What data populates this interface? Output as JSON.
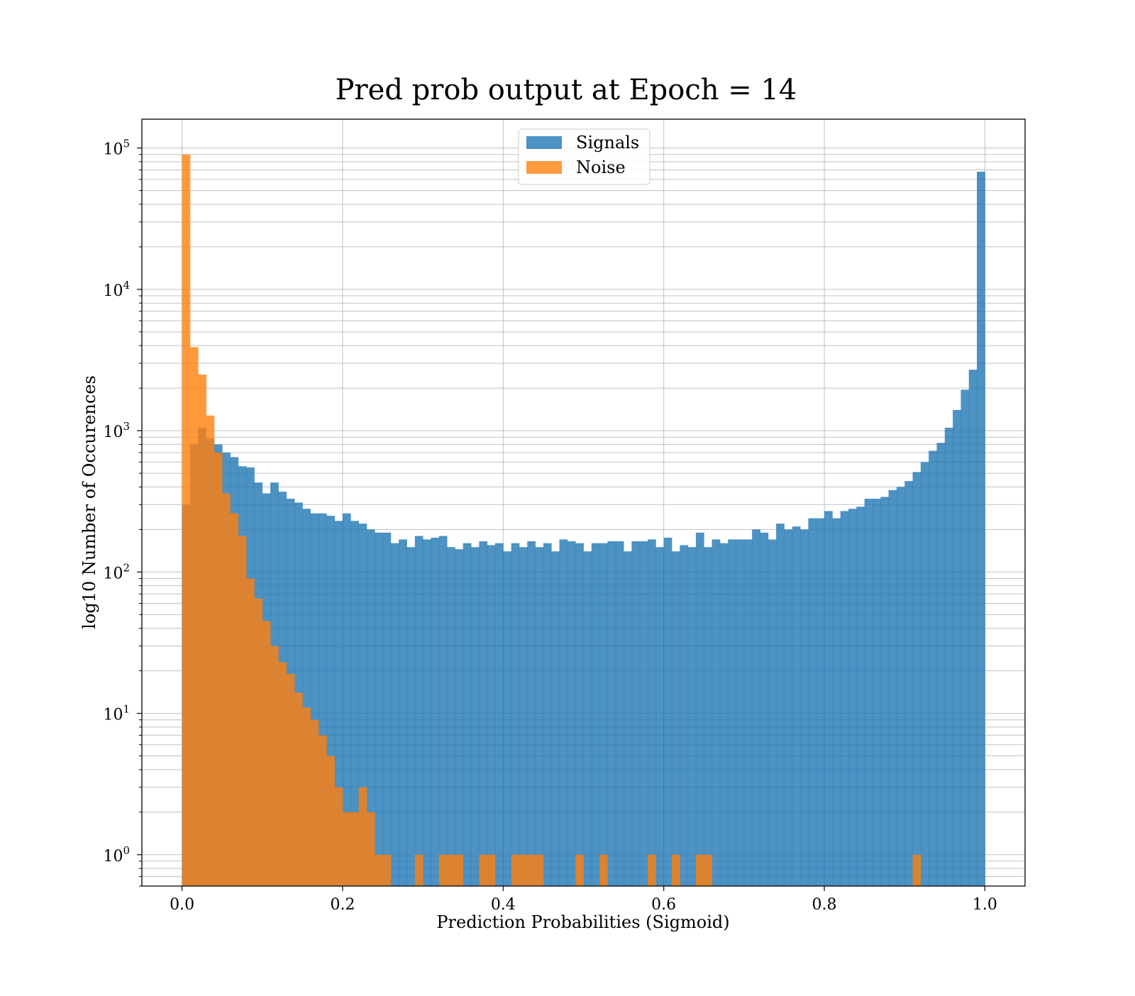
{
  "chart_data": {
    "type": "histogram",
    "title": "Pred prob output at Epoch = 14",
    "xlabel": "Prediction Probabilities (Sigmoid)",
    "ylabel": "log10 Number of Occurences",
    "x_range": [
      -0.05,
      1.05
    ],
    "y_scale": "log",
    "y_range": [
      0.6,
      160000
    ],
    "x_ticks": [
      0.0,
      0.2,
      0.4,
      0.6,
      0.8,
      1.0
    ],
    "x_tick_labels": [
      "0.0",
      "0.2",
      "0.4",
      "0.6",
      "0.8",
      "1.0"
    ],
    "y_ticks": [
      {
        "base": "10",
        "exp": "0",
        "value": 1
      },
      {
        "base": "10",
        "exp": "1",
        "value": 10
      },
      {
        "base": "10",
        "exp": "2",
        "value": 100
      },
      {
        "base": "10",
        "exp": "3",
        "value": 1000
      },
      {
        "base": "10",
        "exp": "4",
        "value": 10000
      },
      {
        "base": "10",
        "exp": "5",
        "value": 100000
      }
    ],
    "grid": true,
    "legend_position": "top-center",
    "bin_range": [
      0.0,
      1.0
    ],
    "bins": 100,
    "series": [
      {
        "name": "Signals",
        "color": "#1f77b4",
        "alpha": 0.8,
        "values": [
          300,
          800,
          1050,
          880,
          800,
          700,
          650,
          560,
          550,
          430,
          360,
          430,
          370,
          330,
          310,
          280,
          260,
          260,
          250,
          230,
          260,
          230,
          220,
          200,
          190,
          190,
          160,
          170,
          150,
          180,
          170,
          175,
          180,
          150,
          145,
          160,
          150,
          165,
          155,
          160,
          140,
          160,
          150,
          165,
          150,
          160,
          140,
          170,
          165,
          160,
          140,
          160,
          160,
          165,
          165,
          140,
          165,
          165,
          170,
          150,
          175,
          140,
          155,
          150,
          190,
          150,
          170,
          160,
          170,
          170,
          170,
          200,
          190,
          170,
          220,
          200,
          210,
          200,
          240,
          240,
          270,
          240,
          270,
          280,
          290,
          330,
          330,
          340,
          380,
          400,
          440,
          510,
          600,
          720,
          820,
          1050,
          1400,
          1950,
          2700,
          68000
        ]
      },
      {
        "name": "Noise",
        "color": "#ff7f0e",
        "alpha": 0.8,
        "values": [
          90000,
          3900,
          2500,
          1280,
          700,
          360,
          260,
          180,
          90,
          65,
          45,
          30,
          23,
          19,
          14,
          11,
          9,
          7,
          5,
          3,
          2,
          2,
          3,
          2,
          1,
          1,
          0,
          0,
          0,
          1,
          0,
          0,
          1,
          1,
          1,
          0,
          0,
          1,
          1,
          0,
          0,
          1,
          1,
          1,
          1,
          0,
          0,
          0,
          0,
          1,
          0,
          0,
          1,
          0,
          0,
          0,
          0,
          0,
          1,
          0,
          0,
          1,
          0,
          0,
          1,
          1,
          0,
          0,
          0,
          0,
          0,
          0,
          0,
          0,
          0,
          0,
          0,
          0,
          0,
          0,
          0,
          0,
          0,
          0,
          0,
          0,
          0,
          0,
          0,
          0,
          0,
          1,
          0,
          0,
          0,
          0,
          0,
          0,
          0,
          0
        ]
      }
    ]
  }
}
